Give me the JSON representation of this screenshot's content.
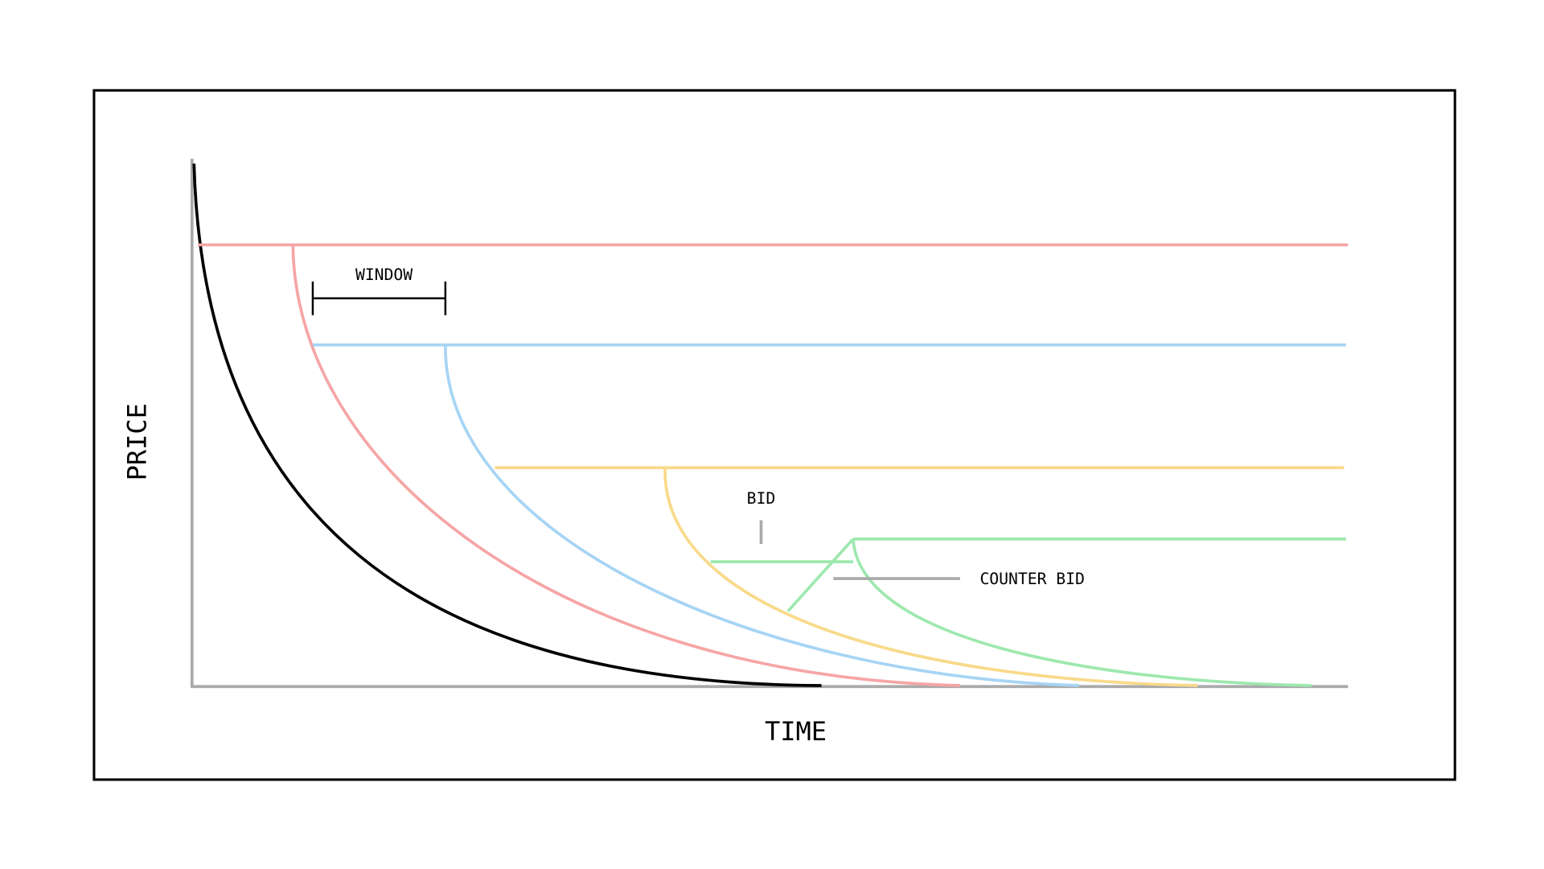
{
  "axes": {
    "y_label": "PRICE",
    "x_label": "TIME"
  },
  "annotations": {
    "window": "WINDOW",
    "bid": "BID",
    "counter_bid": "COUNTER BID"
  }
}
